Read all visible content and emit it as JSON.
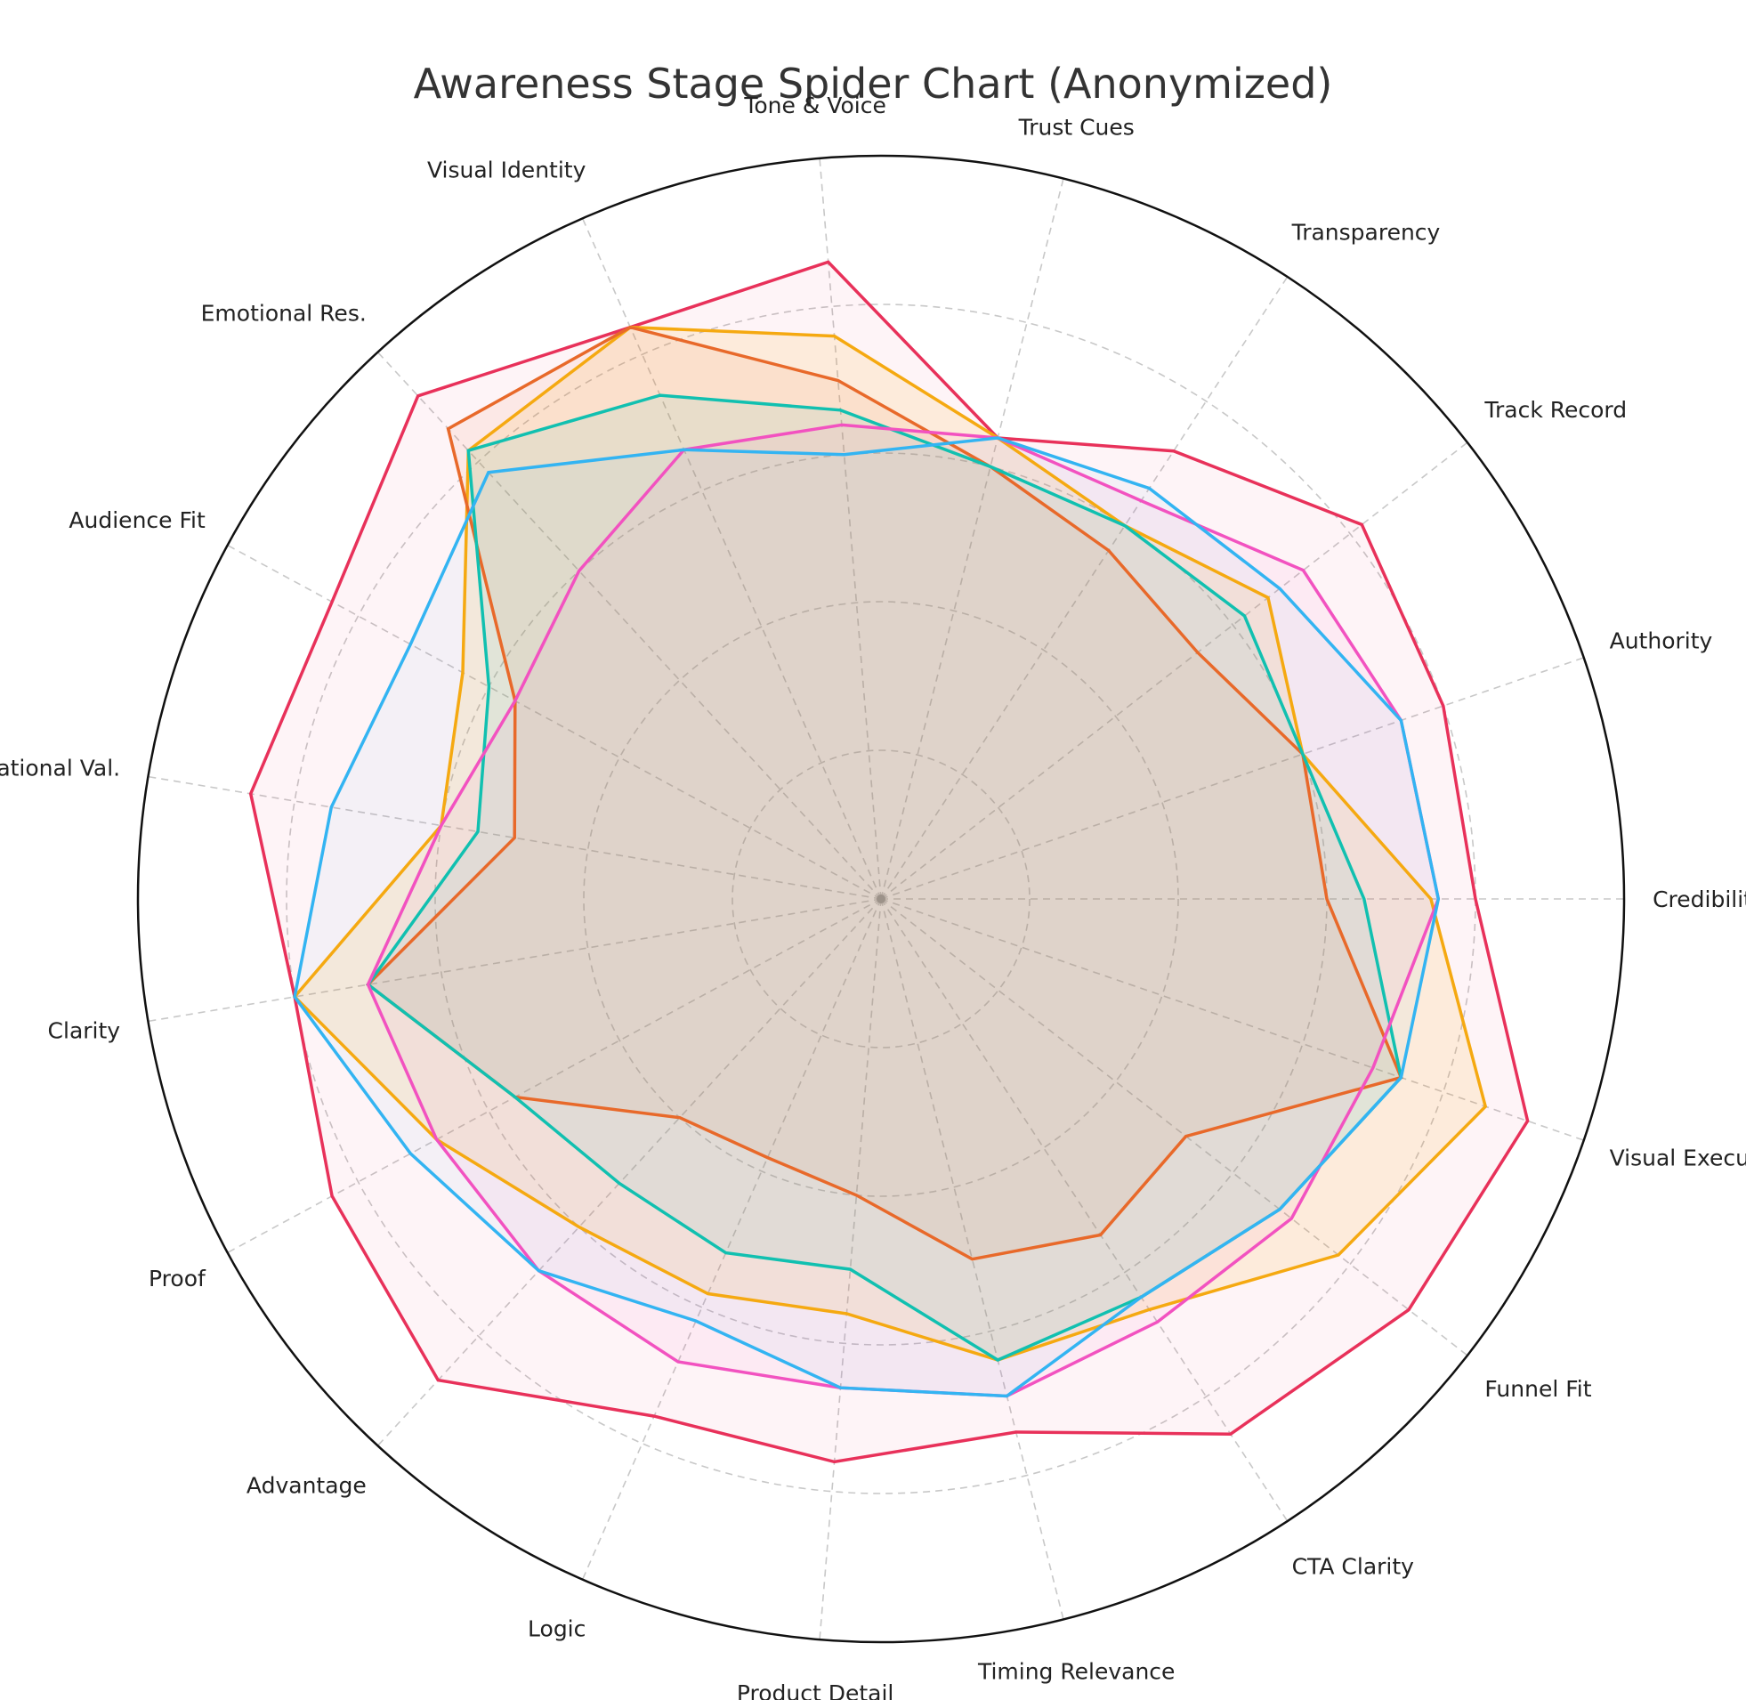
{
  "chart_data": {
    "type": "radar",
    "title": "Awareness Stage Spider Chart (Anonymized)",
    "categories": [
      "Credibility",
      "Authority",
      "Track Record",
      "Transparency",
      "Trust Cues",
      "Tone & Voice",
      "Visual Identity",
      "Emotional Res.",
      "Audience Fit",
      "Aspirational Val.",
      "Clarity",
      "Proof",
      "Advantage",
      "Logic",
      "Product Detail",
      "Timing Relevance",
      "CTA Clarity",
      "Funnel Fit",
      "Visual Execution"
    ],
    "rlim": [
      0,
      5
    ],
    "grid": true,
    "legend": "none",
    "series": [
      {
        "color": "#e8315a",
        "fill_opacity": 0.05,
        "values": [
          4.0,
          4.0,
          4.1,
          3.6,
          3.2,
          4.3,
          4.2,
          4.6,
          4.2,
          4.3,
          4.0,
          4.2,
          4.4,
          3.8,
          3.8,
          3.7,
          4.3,
          4.5,
          4.6
        ]
      },
      {
        "color": "#f5a911",
        "fill_opacity": 0.12,
        "values": [
          3.7,
          3.0,
          3.3,
          3.0,
          3.2,
          3.8,
          4.2,
          4.1,
          3.2,
          3.0,
          4.0,
          3.4,
          3.0,
          2.9,
          2.8,
          3.2,
          3.3,
          3.9,
          4.3
        ]
      },
      {
        "color": "#e8692a",
        "fill_opacity": 0.08,
        "values": [
          3.0,
          3.0,
          2.7,
          2.8,
          3.0,
          3.5,
          4.2,
          4.3,
          2.8,
          2.5,
          3.5,
          2.8,
          2.0,
          1.9,
          2.0,
          2.5,
          2.7,
          2.6,
          3.7
        ]
      },
      {
        "color": "#11c0b0",
        "fill_opacity": 0.08,
        "values": [
          3.25,
          3.0,
          3.1,
          3.0,
          3.0,
          3.3,
          3.7,
          4.1,
          3.0,
          2.75,
          3.5,
          2.8,
          2.6,
          2.6,
          2.5,
          3.2,
          3.2,
          3.4,
          3.7
        ]
      },
      {
        "color": "#f252c0",
        "fill_opacity": 0.06,
        "values": [
          3.75,
          3.7,
          3.6,
          3.2,
          3.2,
          3.2,
          3.3,
          3.0,
          2.8,
          3.0,
          3.5,
          3.4,
          3.4,
          3.4,
          3.3,
          3.45,
          3.4,
          3.5,
          3.5
        ]
      },
      {
        "color": "#33b4f2",
        "fill_opacity": 0.05,
        "values": [
          3.75,
          3.7,
          3.4,
          3.3,
          3.2,
          3.0,
          3.3,
          3.9,
          3.6,
          3.75,
          4.0,
          3.6,
          3.4,
          3.1,
          3.3,
          3.45,
          3.2,
          3.4,
          3.7
        ]
      }
    ]
  }
}
